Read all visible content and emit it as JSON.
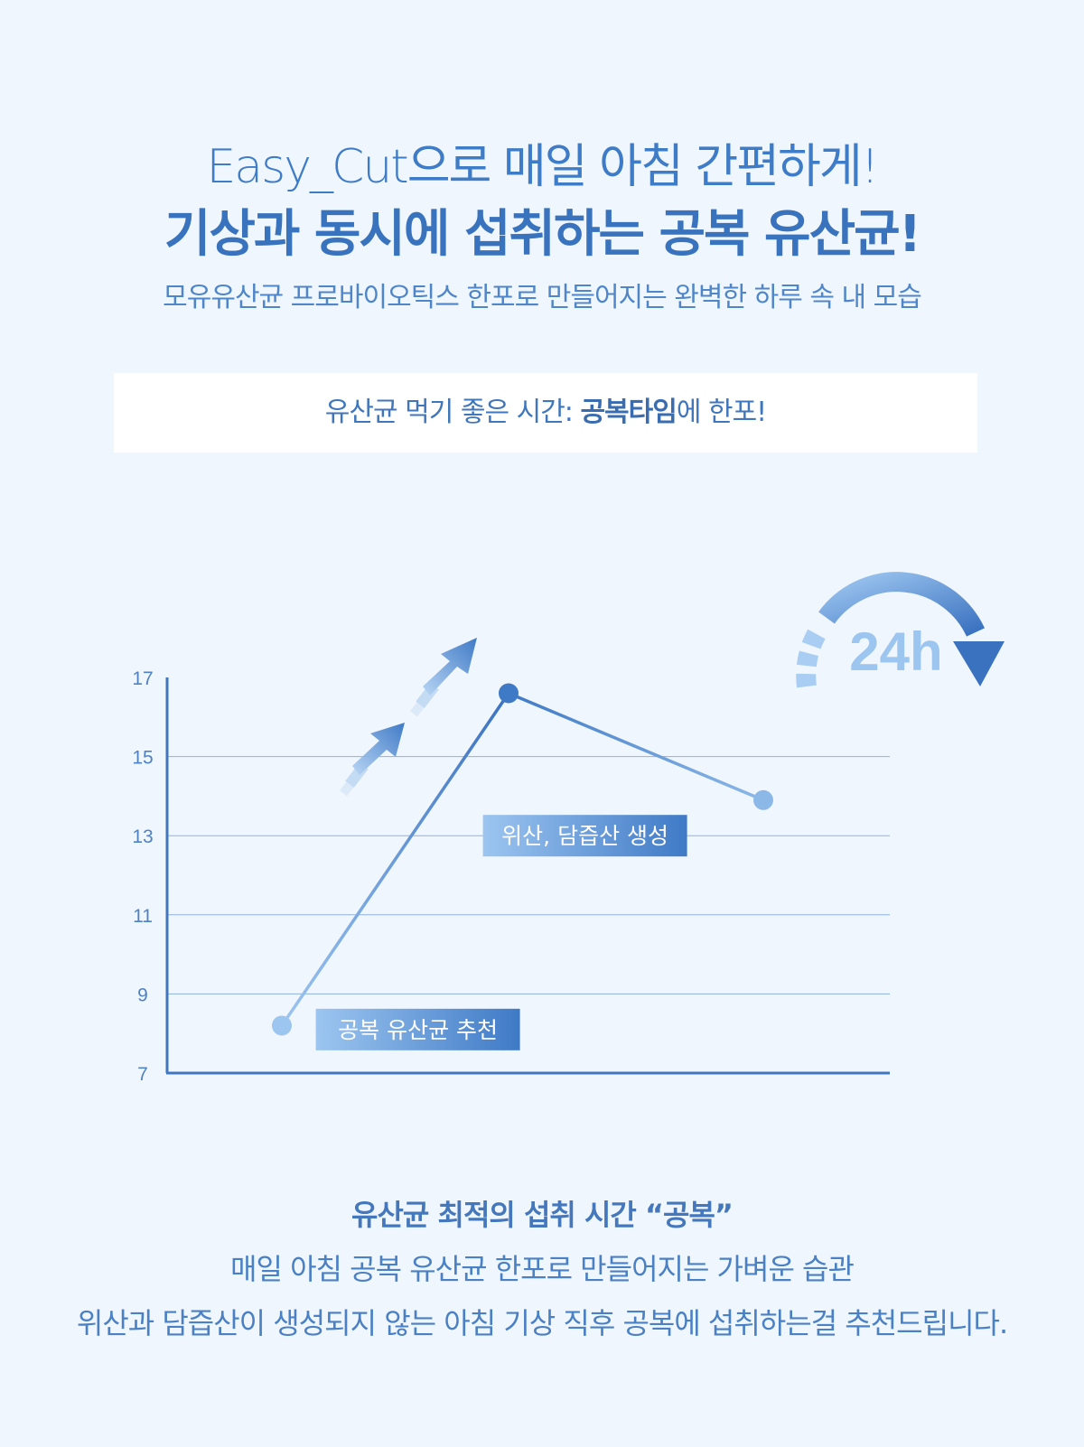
{
  "header": {
    "title_line1": "Easy_Cut으로 매일 아침 간편하게!",
    "title_line2": "기상과 동시에 섭취하는 공복 유산균!",
    "subtitle": "모유유산균 프로바이오틱스 한포로 만들어지는 완벽한 하루 속 내 모습"
  },
  "banner": {
    "prefix": "유산균 먹기 좋은 시간: ",
    "highlight": "공복타임",
    "suffix": "에 한포!"
  },
  "chart_data": {
    "type": "line",
    "title": "",
    "xlabel": "",
    "ylabel": "",
    "ylim": [
      7,
      17
    ],
    "yticks": [
      7,
      9,
      11,
      13,
      15,
      17
    ],
    "x": [
      1,
      2,
      3
    ],
    "series": [
      {
        "values": [
          8.2,
          16.6,
          13.9
        ]
      }
    ],
    "grid": true,
    "annotations": [
      {
        "text": "공복 유산균 추천",
        "x": 1.6,
        "y": 8.1
      },
      {
        "text": "위산, 담즙산 생성",
        "x": 2.3,
        "y": 13.0
      }
    ],
    "badge": "24h",
    "colors": {
      "line": "#3f7ac6",
      "light": "#9cc5f0",
      "axis": "#3f76bf",
      "grid": "#8fb2dd"
    }
  },
  "footer": {
    "title": "유산균 최적의 섭취 시간 “공복”",
    "line1": "매일 아침 공복 유산균 한포로 만들어지는 가벼운 습관",
    "line2": "위산과 담즙산이 생성되지 않는 아침 기상 직후 공복에 섭취하는걸 추천드립니다."
  }
}
